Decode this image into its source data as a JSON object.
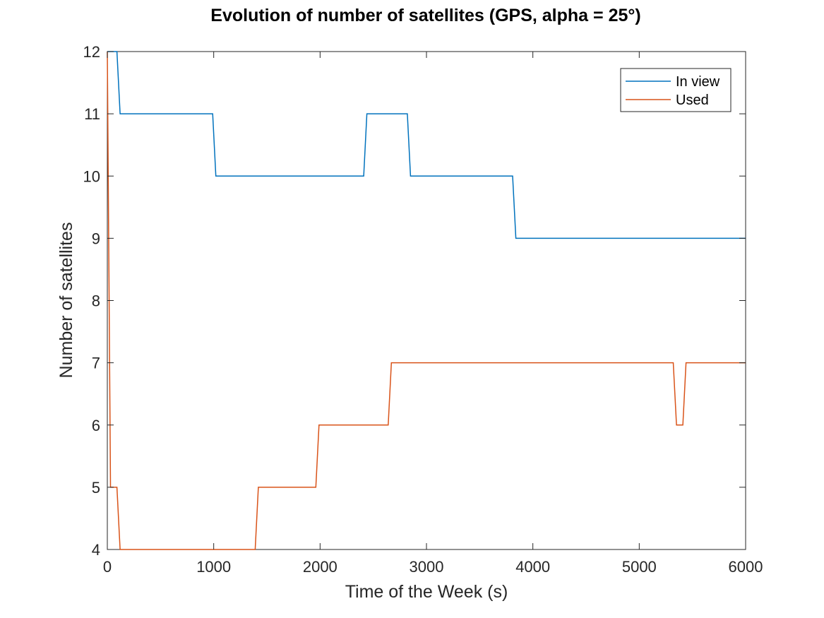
{
  "chart_data": {
    "type": "line",
    "title": "Evolution of number of satellites (GPS, alpha = 25°)",
    "xlabel": "Time of the Week (s)",
    "ylabel": "Number of satellites",
    "xlim": [
      0,
      6000
    ],
    "ylim": [
      4,
      12
    ],
    "xticks": [
      "0",
      "1000",
      "2000",
      "3000",
      "4000",
      "5000",
      "6000"
    ],
    "xtick_values": [
      0,
      1000,
      2000,
      3000,
      4000,
      5000,
      6000
    ],
    "yticks": [
      "4",
      "5",
      "6",
      "7",
      "8",
      "9",
      "10",
      "11",
      "12"
    ],
    "ytick_values": [
      4,
      5,
      6,
      7,
      8,
      9,
      10,
      11,
      12
    ],
    "grid": false,
    "legend_position": "top-right",
    "series": [
      {
        "name": "In view",
        "color": "#0072BD",
        "x": [
          0,
          90,
          120,
          990,
          1020,
          2410,
          2440,
          2820,
          2850,
          3810,
          3840,
          6000
        ],
        "y": [
          12,
          12,
          11,
          11,
          10,
          10,
          11,
          11,
          10,
          10,
          9,
          9
        ]
      },
      {
        "name": "Used",
        "color": "#D95319",
        "x": [
          0,
          30,
          90,
          120,
          1390,
          1420,
          1960,
          1990,
          2640,
          2670,
          5320,
          5350,
          5410,
          5440,
          6000
        ],
        "y": [
          12,
          5,
          5,
          4,
          4,
          5,
          5,
          6,
          6,
          7,
          7,
          6,
          6,
          7,
          7
        ]
      }
    ]
  }
}
